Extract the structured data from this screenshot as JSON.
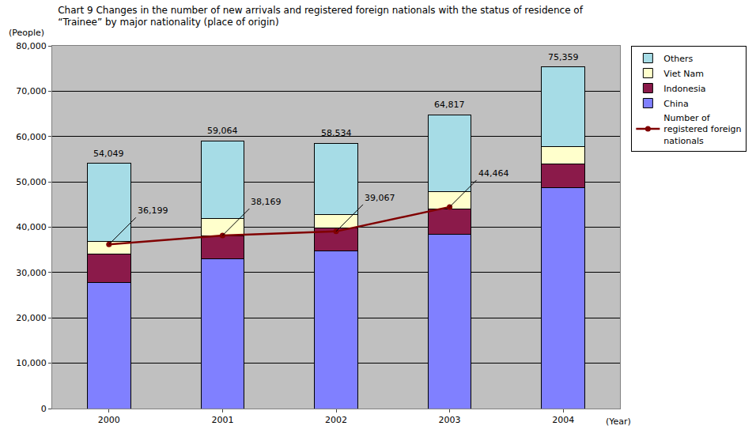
{
  "chart_data": {
    "type": "bar",
    "stacked": true,
    "title": "Chart 9 Changes in the number of new arrivals and registered foreign nationals with the status of residence of\n“Trainee” by major nationality (place of origin)",
    "ylabel": "(People)",
    "xlabel": "(Year)",
    "categories": [
      "2000",
      "2001",
      "2002",
      "2003",
      "2004"
    ],
    "series": [
      {
        "name": "Number of registered foreign nationals",
        "type": "line",
        "color": "#800000",
        "marker": "circle",
        "data_labels": true,
        "values": [
          36199,
          38169,
          39067,
          44464,
          null
        ],
        "value_labels": [
          "36,199",
          "38,169",
          "39,067",
          "44,464",
          null
        ]
      },
      {
        "name": "China",
        "color": "#8080ff",
        "values": [
          27800,
          33000,
          34800,
          38400,
          48800
        ]
      },
      {
        "name": "Indonesia",
        "color": "#8b1a4a",
        "values": [
          6300,
          5100,
          5000,
          5600,
          5200
        ]
      },
      {
        "name": "Viet Nam",
        "color": "#ffffcc",
        "values": [
          2700,
          3900,
          3000,
          3900,
          3800
        ]
      },
      {
        "name": "Others",
        "color": "#a6dce6",
        "values": [
          17249,
          17064,
          15734,
          16917,
          17559
        ]
      }
    ],
    "annotations": [
      {
        "category": "2000",
        "y": 54049,
        "text": "54,049"
      },
      {
        "category": "2001",
        "y": 59064,
        "text": "59,064"
      },
      {
        "category": "2002",
        "y": 58534,
        "text": "58,534"
      },
      {
        "category": "2003",
        "y": 64817,
        "text": "64,817"
      },
      {
        "category": "2004",
        "y": 75359,
        "text": "75,359"
      }
    ],
    "ylim": [
      0,
      80000
    ],
    "yticks": [
      0,
      {
        "value": 10000,
        "label": "10,000"
      },
      {
        "value": 20000,
        "label": "20,000"
      },
      {
        "value": 30000,
        "label": "30,000"
      },
      {
        "value": 40000,
        "label": "40,000"
      },
      {
        "value": 50000,
        "label": "50,000"
      },
      {
        "value": 60000,
        "label": "60,000"
      },
      {
        "value": 70000,
        "label": "70,000"
      },
      {
        "value": 80000,
        "label": "80,000"
      }
    ],
    "grid": true,
    "legend": "right"
  }
}
